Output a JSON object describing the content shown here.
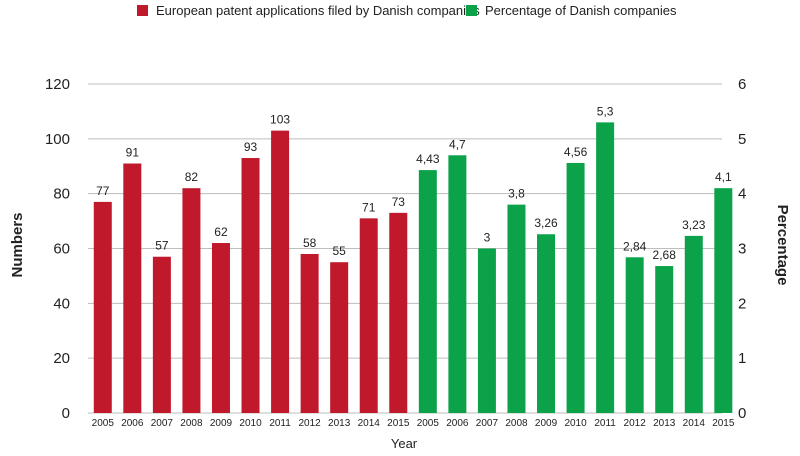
{
  "chart_data": {
    "type": "bar",
    "title": "",
    "xlabel": "Year",
    "ylabel_left": "Numbers",
    "ylabel_right": "Percentage",
    "ylim_left": [
      0,
      120
    ],
    "yticks_left": [
      "0",
      "20",
      "40",
      "60",
      "80",
      "100",
      "120"
    ],
    "ylim_right": [
      0,
      6
    ],
    "yticks_right": [
      "0",
      "1",
      "2",
      "3",
      "4",
      "5",
      "6"
    ],
    "grid": true,
    "legend_position": "top",
    "series": [
      {
        "name": "European patent applications filed by Danish companies",
        "axis": "left",
        "color": "#c0192c",
        "categories": [
          "2005",
          "2006",
          "2007",
          "2008",
          "2009",
          "2010",
          "2011",
          "2012",
          "2013",
          "2014",
          "2015"
        ],
        "values": [
          77,
          91,
          57,
          82,
          62,
          93,
          103,
          58,
          55,
          71,
          73
        ],
        "labels": [
          "77",
          "91",
          "57",
          "82",
          "62",
          "93",
          "103",
          "58",
          "55",
          "71",
          "73"
        ]
      },
      {
        "name": "Percentage of Danish companies",
        "axis": "right",
        "color": "#0ca24a",
        "categories": [
          "2005",
          "2006",
          "2007",
          "2008",
          "2009",
          "2010",
          "2011",
          "2012",
          "2013",
          "2014",
          "2015"
        ],
        "values": [
          4.43,
          4.7,
          3,
          3.8,
          3.26,
          4.56,
          5.3,
          2.84,
          2.68,
          3.23,
          4.1
        ],
        "labels": [
          "4,43",
          "4,7",
          "3",
          "3,8",
          "3,26",
          "4,56",
          "5,3",
          "2,84",
          "2,68",
          "3,23",
          "4,1"
        ]
      }
    ]
  }
}
